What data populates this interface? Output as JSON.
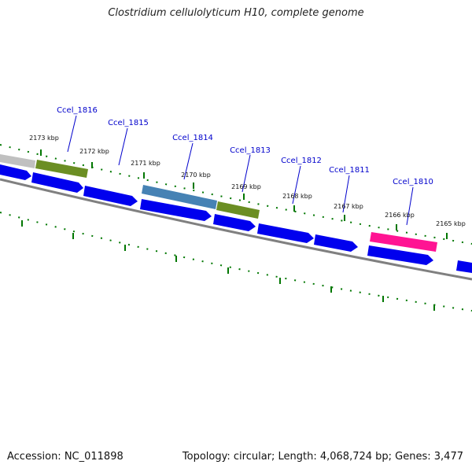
{
  "title": "Clostridium cellulolyticum H10, complete genome",
  "footer": {
    "accession": "Accession: NC_011898",
    "summary": "Topology: circular; Length: 4,068,724 bp; Genes: 3,477"
  },
  "colors": {
    "cds": "#0000ee",
    "green": "#6b8e23",
    "steel": "#4682b4",
    "pink": "#ff1493",
    "grey": "#c0c0c0",
    "backbone": "#808080",
    "tick": "#007700",
    "label": "#0000cc"
  },
  "gene_labels": [
    "Ccel_1816",
    "Ccel_1815",
    "Ccel_1814",
    "Ccel_1813",
    "Ccel_1812",
    "Ccel_1811",
    "Ccel_1810"
  ],
  "kbp_labels": [
    "2173 kbp",
    "2172 kbp",
    "2171 kbp",
    "2170 kbp",
    "2169 kbp",
    "2168 kbp",
    "2167 kbp",
    "2166 kbp",
    "2165 kbp"
  ]
}
